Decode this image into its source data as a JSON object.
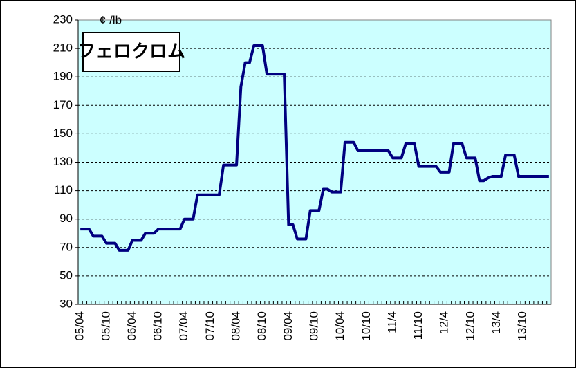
{
  "chart_data": {
    "type": "line",
    "title": "フェロクロム",
    "y_label": "¢ /lb",
    "categories": [
      "05/04",
      null,
      null,
      null,
      null,
      null,
      "05/10",
      null,
      null,
      null,
      null,
      null,
      "06/04",
      null,
      null,
      null,
      null,
      null,
      "06/10",
      null,
      null,
      null,
      null,
      null,
      "07/04",
      null,
      null,
      null,
      null,
      null,
      "07/10",
      null,
      null,
      null,
      null,
      null,
      "08/04",
      null,
      null,
      null,
      null,
      null,
      "08/10",
      null,
      null,
      null,
      null,
      null,
      "09/04",
      null,
      null,
      null,
      null,
      null,
      "09/10",
      null,
      null,
      null,
      null,
      null,
      "10/04",
      null,
      null,
      null,
      null,
      null,
      "10/10",
      null,
      null,
      null,
      null,
      null,
      "11/4",
      null,
      null,
      null,
      null,
      null,
      "11/10",
      null,
      null,
      null,
      null,
      null,
      "12/4",
      null,
      null,
      null,
      null,
      null,
      "12/10",
      null,
      null,
      null,
      null,
      null,
      "13/4",
      null,
      null,
      null,
      null,
      null,
      "13/10",
      null,
      null,
      null,
      null,
      null,
      null
    ],
    "values": [
      83,
      83,
      83,
      78,
      78,
      78,
      73,
      73,
      73,
      68,
      68,
      68,
      75,
      75,
      75,
      80,
      80,
      80,
      83,
      83,
      83,
      83,
      83,
      83,
      90,
      90,
      90,
      107,
      107,
      107,
      107,
      107,
      107,
      128,
      128,
      128,
      128,
      183,
      200,
      200,
      212,
      212,
      212,
      192,
      192,
      192,
      192,
      192,
      86,
      86,
      76,
      76,
      76,
      96,
      96,
      96,
      111,
      111,
      109,
      109,
      109,
      144,
      144,
      144,
      138,
      138,
      138,
      138,
      138,
      138,
      138,
      138,
      133,
      133,
      133,
      143,
      143,
      143,
      127,
      127,
      127,
      127,
      127,
      123,
      123,
      123,
      143,
      143,
      143,
      133,
      133,
      133,
      117,
      117,
      119,
      120,
      120,
      120,
      135,
      135,
      135,
      120,
      120,
      120,
      120,
      120,
      120,
      120,
      120
    ],
    "color": "#000080",
    "plot_background": "#ccffff",
    "ylim": [
      30,
      230
    ],
    "yticks": [
      30,
      50,
      70,
      90,
      110,
      130,
      150,
      170,
      190,
      210,
      230
    ],
    "grid": true
  }
}
